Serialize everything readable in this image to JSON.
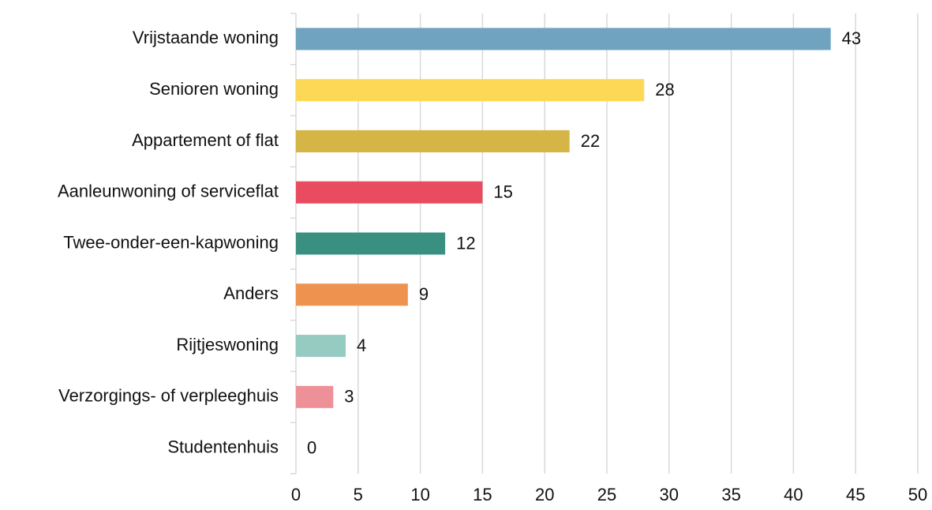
{
  "chart_data": {
    "type": "bar",
    "orientation": "horizontal",
    "categories": [
      "Vrijstaande woning",
      "Senioren woning",
      "Appartement of flat",
      "Aanleunwoning of serviceflat",
      "Twee-onder-een-kapwoning",
      "Anders",
      "Rijtjeswoning",
      "Verzorgings- of verpleeghuis",
      "Studentenhuis"
    ],
    "values": [
      43,
      28,
      22,
      15,
      12,
      9,
      4,
      3,
      0
    ],
    "colors": [
      "#6fa3bf",
      "#fdd856",
      "#d4b545",
      "#e94b60",
      "#3a9080",
      "#ee9250",
      "#95cbc1",
      "#ee9098",
      "#b7a6cf"
    ],
    "xlim": [
      0,
      50
    ],
    "xticks": [
      0,
      5,
      10,
      15,
      20,
      25,
      30,
      35,
      40,
      45,
      50
    ],
    "grid": true
  }
}
